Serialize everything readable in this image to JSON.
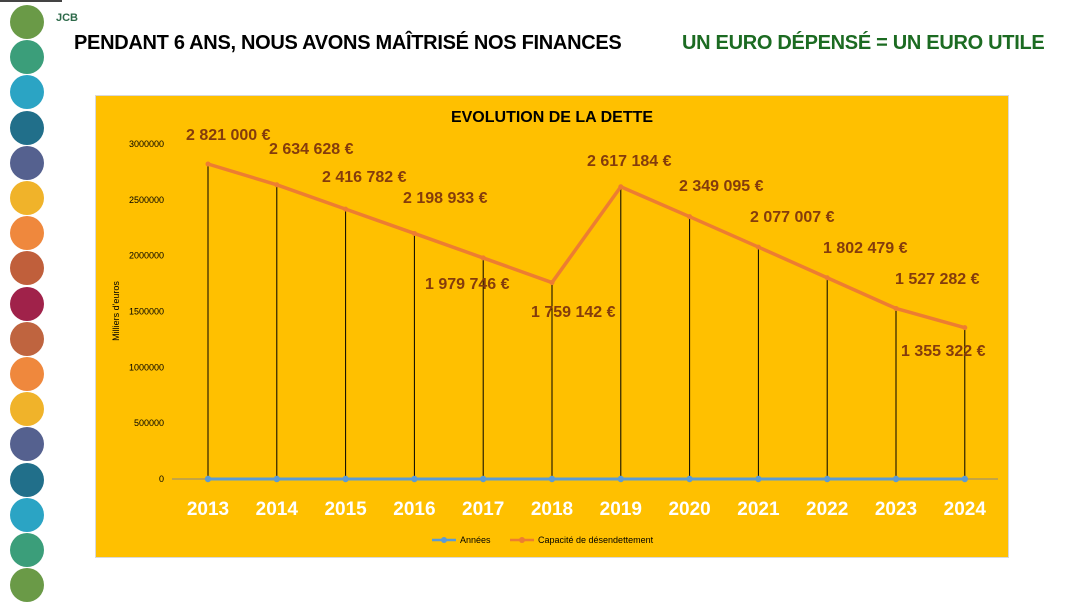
{
  "slide": {
    "logo": "JCB",
    "headline_left": "PENDANT 6 ANS, NOUS AVONS MAÎTRISÉ NOS FINANCES",
    "headline_right": "UN EURO DÉPENSÉ = UN EURO UTILE",
    "dot_colors": [
      "#6a9a47",
      "#3b9e7a",
      "#2ba4c4",
      "#216f8a",
      "#55618f",
      "#f0b32a",
      "#ef883d",
      "#c05f3b",
      "#a0224a",
      "#bf643f",
      "#ef883d",
      "#f0b32a",
      "#55618f",
      "#216f8a",
      "#2ba4c4",
      "#3b9e7a",
      "#6a9a47"
    ]
  },
  "chart_data": {
    "type": "line",
    "title": "EVOLUTION DE LA DETTE",
    "ylabel": "Milliers d'euros",
    "xlabel": "",
    "categories": [
      "2013",
      "2014",
      "2015",
      "2016",
      "2017",
      "2018",
      "2019",
      "2020",
      "2021",
      "2022",
      "2023",
      "2024"
    ],
    "ylim": [
      0,
      3000000
    ],
    "yticks": [
      "0",
      "500000",
      "1000000",
      "1500000",
      "2000000",
      "2500000",
      "3000000"
    ],
    "yticks_values": [
      0,
      500000,
      1000000,
      1500000,
      2000000,
      2500000,
      3000000
    ],
    "grid": false,
    "drop_lines": true,
    "legend_position": "bottom",
    "colors": {
      "background": "#ffc000",
      "annees": "#5b9bd5",
      "capacite": "#ed7d31",
      "labels": "#843c0c"
    },
    "series": [
      {
        "name": "Années",
        "values": [
          0,
          0,
          0,
          0,
          0,
          0,
          0,
          0,
          0,
          0,
          0,
          0
        ]
      },
      {
        "name": "Capacité de désendettement",
        "values": [
          2821000,
          2634628,
          2416782,
          2198933,
          1979746,
          1759142,
          2617184,
          2349095,
          2077007,
          1802479,
          1527282,
          1355322
        ],
        "labels": [
          "2 821 000 €",
          "2 634 628 €",
          "2 416 782 €",
          "2 198 933 €",
          "1 979 746 €",
          "1 759 142 €",
          "2 617 184 €",
          "2 349 095 €",
          "2 077 007 €",
          "1 802 479 €",
          "1 527 282 €",
          "1 355 322 €"
        ]
      }
    ]
  }
}
